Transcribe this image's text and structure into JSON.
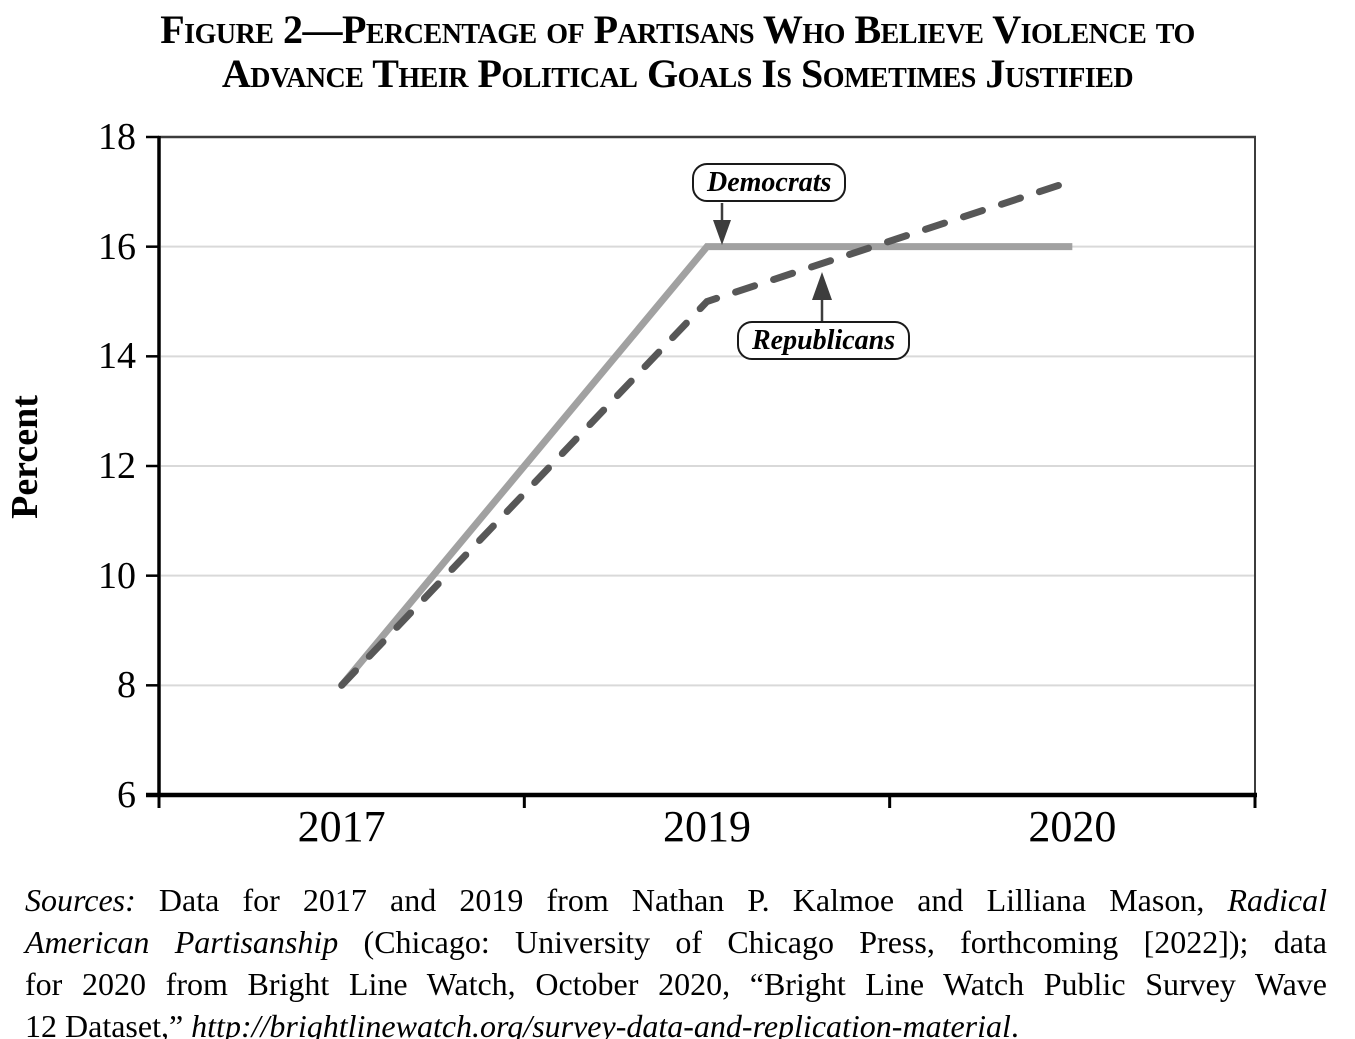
{
  "title": {
    "line1": "Figure 2—Percentage of Partisans Who Believe Violence to",
    "line2": "Advance Their Political Goals Is Sometimes Justified"
  },
  "chart_data": {
    "type": "line",
    "categories": [
      "2017",
      "2019",
      "2020"
    ],
    "series": [
      {
        "name": "Democrats",
        "values": [
          8,
          16,
          16
        ],
        "style": "solid",
        "color": "#a1a1a1"
      },
      {
        "name": "Republicans",
        "values": [
          8,
          15,
          17.2
        ],
        "style": "dashed",
        "color": "#575757"
      }
    ],
    "title": "",
    "xlabel": "",
    "ylabel": "Percent",
    "ylim": [
      6,
      18
    ],
    "yticks": [
      6,
      8,
      10,
      12,
      14,
      16,
      18
    ],
    "grid": "horizontal-light",
    "legend": "none",
    "annotations": [
      {
        "label": "Democrats",
        "series": "Democrats",
        "arrow": "down"
      },
      {
        "label": "Republicans",
        "series": "Republicans",
        "arrow": "up"
      }
    ]
  },
  "colors": {
    "democrats_line": "#a1a1a1",
    "republicans_line": "#575757",
    "grid": "#d9d9d9",
    "axis": "#000000",
    "border": "#3c3c3c",
    "arrow": "#3d3d3d",
    "text": "#000000"
  },
  "sources": {
    "lines": [
      [
        {
          "t": "Sources:",
          "i": true
        },
        {
          "t": " Data for 2017 and 2019 from Nathan P. Kalmoe and Lilliana Mason, ",
          "i": false
        },
        {
          "t": "Radical",
          "i": true
        }
      ],
      [
        {
          "t": "American Partisanship",
          "i": true
        },
        {
          "t": " (Chicago: University of Chicago Press, forthcoming [2022]); data",
          "i": false
        }
      ],
      [
        {
          "t": "for 2020 from Bright Line Watch, October 2020, “Bright Line Watch Public Survey Wave",
          "i": false
        }
      ],
      [
        {
          "t": "12 Dataset,” ",
          "i": false
        },
        {
          "t": "http://brightlinewatch.org/survey-data-and-replication-material",
          "i": true
        },
        {
          "t": ".",
          "i": false
        }
      ]
    ]
  }
}
